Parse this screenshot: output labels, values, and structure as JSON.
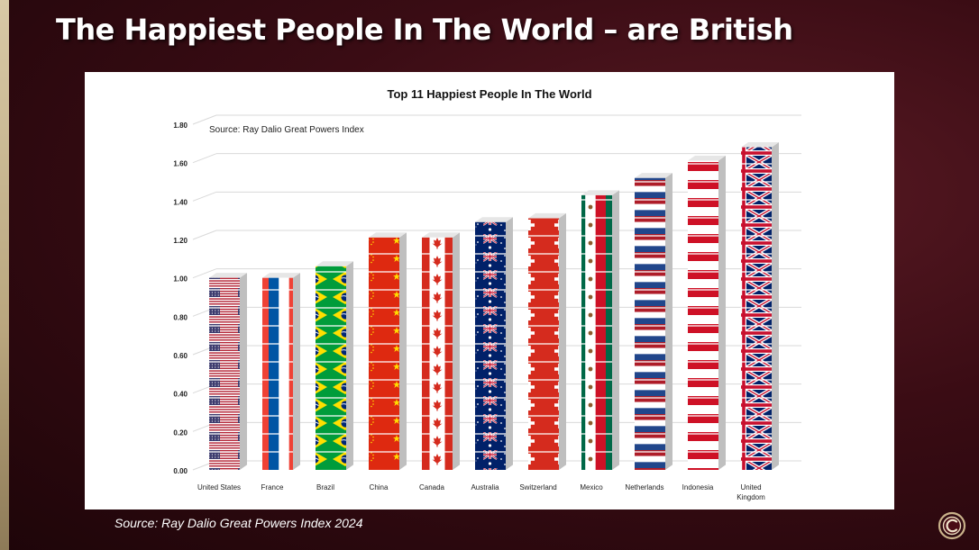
{
  "slide": {
    "title": "The Happiest People In The World – are British",
    "source_caption": "Source: Ray Dalio Great Powers Index 2024"
  },
  "logo": {
    "icon": "brand-circle-logo-icon"
  },
  "colors": {
    "background": "#3a0c14",
    "title": "#ffffff",
    "chart_panel": "#ffffff"
  },
  "chart_data": {
    "type": "bar",
    "title": "Top 11 Happiest People In The World",
    "annotation": "Source: Ray Dalio Great Powers Index",
    "categories": [
      "United States",
      "France",
      "Brazil",
      "China",
      "Canada",
      "Australia",
      "Switzerland",
      "Mexico",
      "Netherlands",
      "Indonesia",
      "United Kingdom"
    ],
    "values": [
      1.0,
      1.0,
      1.06,
      1.21,
      1.21,
      1.29,
      1.31,
      1.43,
      1.52,
      1.61,
      1.68
    ],
    "flags": [
      "us",
      "fr",
      "br",
      "cn",
      "ca",
      "au",
      "ch",
      "mx",
      "nl",
      "id",
      "gb"
    ],
    "xlabel": "",
    "ylabel": "",
    "ylim": [
      0,
      1.8
    ],
    "yticks": [
      "0.00",
      "0.20",
      "0.40",
      "0.60",
      "0.80",
      "1.00",
      "1.20",
      "1.40",
      "1.60",
      "1.80"
    ],
    "grid": true,
    "bar_style": "3D stacked national-flag pictograph"
  }
}
